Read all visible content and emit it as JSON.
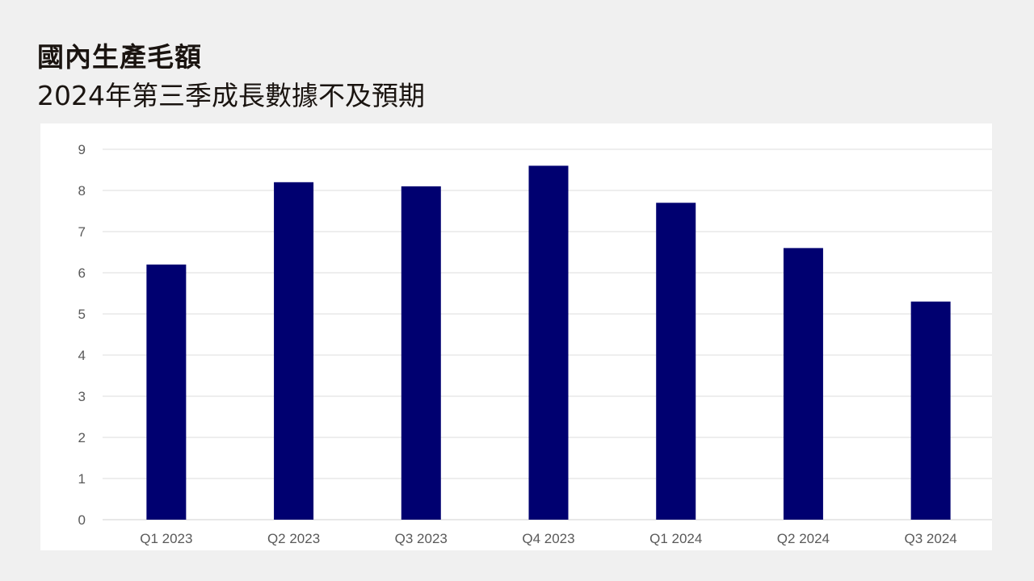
{
  "title": "國內生產毛額",
  "subtitle": "2024年第三季成長數據不及預期",
  "chart_data": {
    "type": "bar",
    "categories": [
      "Q1 2023",
      "Q2 2023",
      "Q3 2023",
      "Q4 2023",
      "Q1 2024",
      "Q2 2024",
      "Q3 2024"
    ],
    "values": [
      6.2,
      8.2,
      8.1,
      8.6,
      7.7,
      6.6,
      5.3
    ],
    "yticks": [
      "0",
      "1",
      "2",
      "3",
      "4",
      "5",
      "6",
      "7",
      "8",
      "9"
    ],
    "ylim": [
      0,
      9
    ],
    "grid": true,
    "bar_color": "#000070",
    "xlabel": "",
    "ylabel": ""
  }
}
